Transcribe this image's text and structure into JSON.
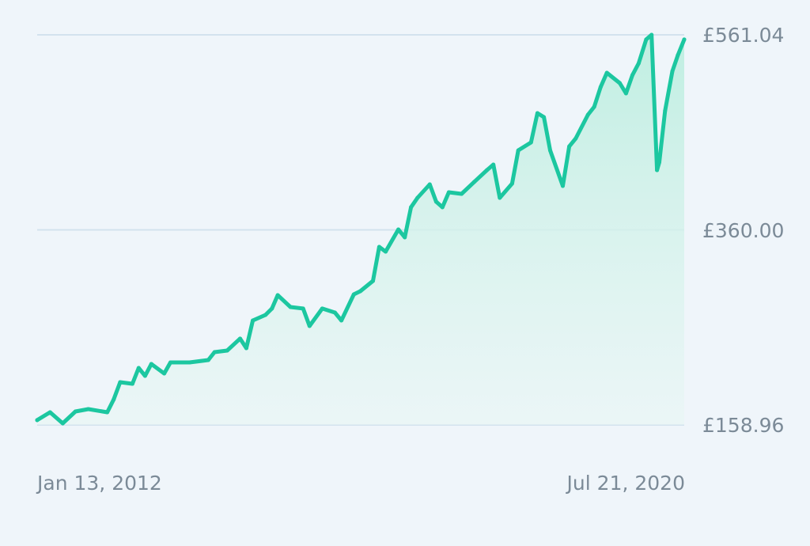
{
  "chart_data": {
    "type": "area",
    "title": "",
    "xlabel": "",
    "ylabel": "",
    "currency": "£",
    "y_ticks": [
      "£561.04",
      "£360.00",
      "£158.96"
    ],
    "y_tick_values": [
      561.04,
      360.0,
      158.96
    ],
    "ylim": [
      158.96,
      561.04
    ],
    "x_tick_labels": [
      "Jan 13, 2012",
      "Jul 21, 2020"
    ],
    "xlim": [
      "2012-01-13",
      "2020-07-21"
    ],
    "grid": "horizontal",
    "line_color": "#1cc7a0",
    "fill_color": "#c9f1e6",
    "series": [
      {
        "x": [
          "2012-01-13",
          "2012-03-15",
          "2012-05-15",
          "2012-07-15",
          "2012-09-15",
          "2012-12-15",
          "2013-01-15",
          "2013-02-15",
          "2013-04-15",
          "2013-05-15",
          "2013-06-15",
          "2013-07-15",
          "2013-09-15",
          "2013-10-15",
          "2014-01-15",
          "2014-04-15",
          "2014-05-15",
          "2014-07-15",
          "2014-09-15",
          "2014-10-15",
          "2014-11-15",
          "2015-01-15",
          "2015-02-15",
          "2015-03-15",
          "2015-05-15",
          "2015-07-15",
          "2015-08-15",
          "2015-10-15",
          "2015-12-15",
          "2016-01-15",
          "2016-03-15",
          "2016-04-15",
          "2016-06-15",
          "2016-07-15",
          "2016-08-15",
          "2016-10-15",
          "2016-11-15",
          "2016-12-15",
          "2017-01-15",
          "2017-03-15",
          "2017-04-15",
          "2017-05-15",
          "2017-06-15",
          "2017-08-15",
          "2017-10-15",
          "2017-12-15",
          "2018-01-15",
          "2018-02-15",
          "2018-04-15",
          "2018-05-15",
          "2018-07-15",
          "2018-08-15",
          "2018-09-15",
          "2018-10-15",
          "2018-12-15",
          "2019-01-15",
          "2019-02-15",
          "2019-04-15",
          "2019-05-15",
          "2019-06-15",
          "2019-07-15",
          "2019-09-15",
          "2019-10-15",
          "2019-11-15",
          "2019-12-15",
          "2020-01-20",
          "2020-02-15",
          "2020-03-12",
          "2020-03-23",
          "2020-04-20",
          "2020-05-25",
          "2020-06-20",
          "2020-07-21"
        ],
        "y": [
          163.9,
          172.0,
          160.6,
          172.8,
          175.3,
          172.0,
          185.1,
          203.0,
          201.4,
          217.7,
          209.5,
          221.8,
          212.0,
          223.4,
          223.4,
          225.8,
          234.0,
          235.6,
          247.9,
          238.1,
          266.6,
          272.3,
          278.9,
          292.7,
          280.5,
          278.9,
          260.9,
          278.9,
          274.8,
          266.6,
          293.5,
          296.8,
          307.4,
          342.5,
          337.6,
          360.4,
          352.3,
          383.3,
          393.0,
          406.9,
          389.0,
          383.3,
          398.7,
          397.1,
          409.4,
          421.6,
          427.3,
          393.0,
          407.7,
          442.0,
          450.1,
          480.3,
          476.2,
          442.0,
          405.3,
          446.0,
          454.2,
          478.7,
          486.8,
          507.2,
          521.9,
          511.3,
          500.7,
          519.5,
          531.7,
          556.2,
          561.04,
          421.6,
          429.7,
          482.8,
          523.5,
          539.9,
          556.2
        ]
      }
    ]
  }
}
